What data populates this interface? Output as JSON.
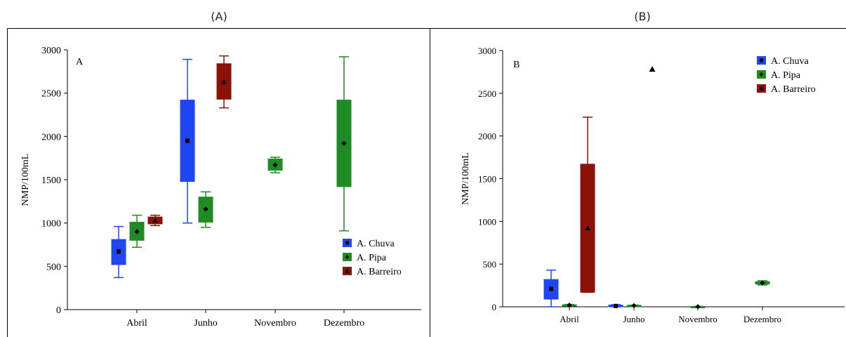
{
  "captions": {
    "left": "(A)",
    "right": "(B)"
  },
  "colors": {
    "A. Chuva": "#1f45f5",
    "A. Pipa": "#1e8c23",
    "A. Barreiro": "#8b1209"
  },
  "chart_data": [
    {
      "type": "box",
      "panel_label": "A",
      "ylabel": "NMP/100mL",
      "ylim": [
        0,
        3000
      ],
      "yticks": [
        0,
        500,
        1000,
        1500,
        2000,
        2500,
        3000
      ],
      "categories": [
        "Abril",
        "Junho",
        "Novembro",
        "Dezembro"
      ],
      "legend": {
        "position": "bottom-right",
        "entries": [
          "A. Chuva",
          "A. Pipa",
          "A. Barreiro"
        ]
      },
      "series": [
        {
          "name": "A. Chuva",
          "marker": "square",
          "boxes": [
            {
              "category": "Abril",
              "min": 370,
              "q1": 520,
              "median": 670,
              "q3": 810,
              "max": 960
            },
            {
              "category": "Junho",
              "min": 1000,
              "q1": 1480,
              "median": 1950,
              "q3": 2420,
              "max": 2890
            }
          ]
        },
        {
          "name": "A. Pipa",
          "marker": "diamond",
          "boxes": [
            {
              "category": "Abril",
              "min": 720,
              "q1": 800,
              "median": 900,
              "q3": 1010,
              "max": 1090
            },
            {
              "category": "Junho",
              "min": 950,
              "q1": 1010,
              "median": 1160,
              "q3": 1300,
              "max": 1360
            },
            {
              "category": "Novembro",
              "min": 1580,
              "q1": 1610,
              "median": 1670,
              "q3": 1740,
              "max": 1760
            },
            {
              "category": "Dezembro",
              "min": 910,
              "q1": 1420,
              "median": 1920,
              "q3": 2420,
              "max": 2920
            }
          ]
        },
        {
          "name": "A. Barreiro",
          "marker": "triangle",
          "boxes": [
            {
              "category": "Abril",
              "min": 970,
              "q1": 990,
              "median": 1030,
              "q3": 1070,
              "max": 1090
            },
            {
              "category": "Junho",
              "min": 2330,
              "q1": 2430,
              "median": 2630,
              "q3": 2840,
              "max": 2930
            }
          ]
        }
      ]
    },
    {
      "type": "box",
      "panel_label": "B",
      "ylabel": "NMP/100mL",
      "ylim": [
        0,
        3000
      ],
      "yticks": [
        0,
        500,
        1000,
        1500,
        2000,
        2500,
        3000
      ],
      "categories": [
        "Abril",
        "Junho",
        "Novembro",
        "Dezembro"
      ],
      "legend": {
        "position": "top-right",
        "entries": [
          "A. Chuva",
          "A. Pipa",
          "A. Barreiro"
        ]
      },
      "series": [
        {
          "name": "A. Chuva",
          "marker": "square",
          "boxes": [
            {
              "category": "Abril",
              "min": 0,
              "q1": 90,
              "median": 210,
              "q3": 320,
              "max": 430
            },
            {
              "category": "Junho",
              "min": 0,
              "q1": 0,
              "median": 10,
              "q3": 20,
              "max": 25
            }
          ]
        },
        {
          "name": "A. Pipa",
          "marker": "diamond",
          "boxes": [
            {
              "category": "Abril",
              "min": 15,
              "q1": 18,
              "median": 20,
              "q3": 24,
              "max": 28
            },
            {
              "category": "Junho",
              "min": 10,
              "q1": 12,
              "median": 15,
              "q3": 18,
              "max": 20
            },
            {
              "category": "Novembro",
              "min": 0,
              "q1": 0,
              "median": 2,
              "q3": 4,
              "max": 5
            },
            {
              "category": "Dezembro",
              "min": 255,
              "q1": 265,
              "median": 280,
              "q3": 295,
              "max": 305
            }
          ]
        },
        {
          "name": "A. Barreiro",
          "marker": "triangle",
          "boxes": [
            {
              "category": "Abril",
              "min": 170,
              "q1": 170,
              "median": 920,
              "q3": 1670,
              "max": 2220
            }
          ]
        },
        {
          "name": "A. Barreiro",
          "marker": "triangle",
          "points": [
            {
              "category": "Junho",
              "value": 2780
            }
          ]
        }
      ]
    }
  ]
}
